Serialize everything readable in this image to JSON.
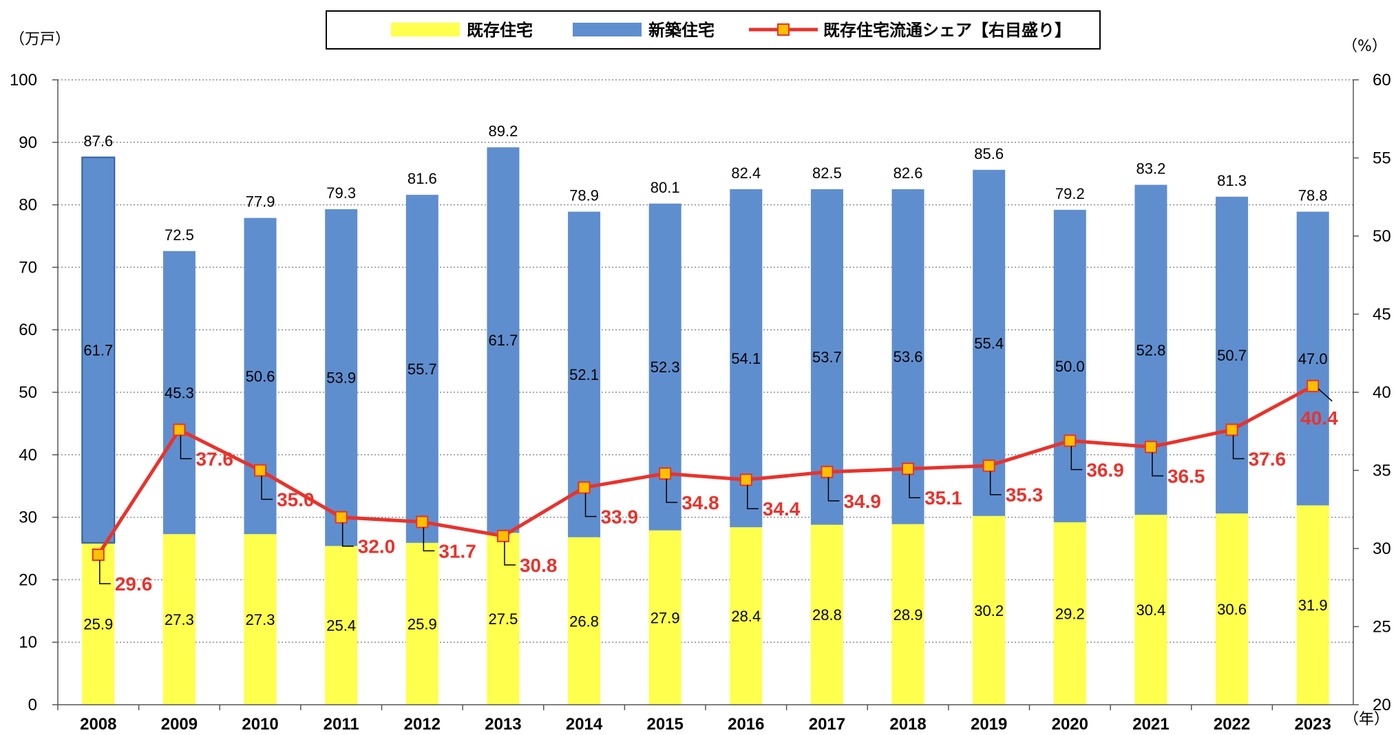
{
  "legend": {
    "existing": "既存住宅",
    "new": "新築住宅",
    "share": "既存住宅流通シェア【右目盛り】"
  },
  "units": {
    "left": "（万戸）",
    "right": "（%）",
    "x": "（年）"
  },
  "colors": {
    "existing": "#ffff4d",
    "new": "#5f8ecf",
    "share_line": "#e8332c",
    "share_marker_fill": "#ffc000",
    "share_label": "#e8332c",
    "grid": "#8c8c8c"
  },
  "chart_data": {
    "type": "bar",
    "stacked": true,
    "categories": [
      "2008",
      "2009",
      "2010",
      "2011",
      "2012",
      "2013",
      "2014",
      "2015",
      "2016",
      "2017",
      "2018",
      "2019",
      "2020",
      "2021",
      "2022",
      "2023"
    ],
    "series": [
      {
        "name": "既存住宅",
        "axis": "left",
        "values": [
          25.9,
          27.3,
          27.3,
          25.4,
          25.9,
          27.5,
          26.8,
          27.9,
          28.4,
          28.8,
          28.9,
          30.2,
          29.2,
          30.4,
          30.6,
          31.9
        ]
      },
      {
        "name": "新築住宅",
        "axis": "left",
        "values": [
          61.7,
          45.3,
          50.6,
          53.9,
          55.7,
          61.7,
          52.1,
          52.3,
          54.1,
          53.7,
          53.6,
          55.4,
          50.0,
          52.8,
          50.7,
          47.0
        ]
      },
      {
        "name": "既存住宅流通シェア【右目盛り】",
        "axis": "right",
        "type": "line",
        "values": [
          29.6,
          37.6,
          35.0,
          32.0,
          31.7,
          30.8,
          33.9,
          34.8,
          34.4,
          34.9,
          35.1,
          35.3,
          36.9,
          36.5,
          37.6,
          40.4
        ]
      }
    ],
    "totals": [
      87.6,
      72.5,
      77.9,
      79.3,
      81.6,
      89.2,
      78.9,
      80.1,
      82.4,
      82.5,
      82.6,
      85.6,
      79.2,
      83.2,
      81.3,
      78.8
    ],
    "left_axis": {
      "min": 0,
      "max": 100,
      "ticks": [
        0,
        10,
        20,
        30,
        40,
        50,
        60,
        70,
        80,
        90,
        100
      ]
    },
    "right_axis": {
      "min": 20,
      "max": 60,
      "ticks": [
        20,
        25,
        30,
        35,
        40,
        45,
        50,
        55,
        60
      ]
    },
    "value_format": "0.0",
    "grid": true,
    "legend_position": "top-center"
  }
}
